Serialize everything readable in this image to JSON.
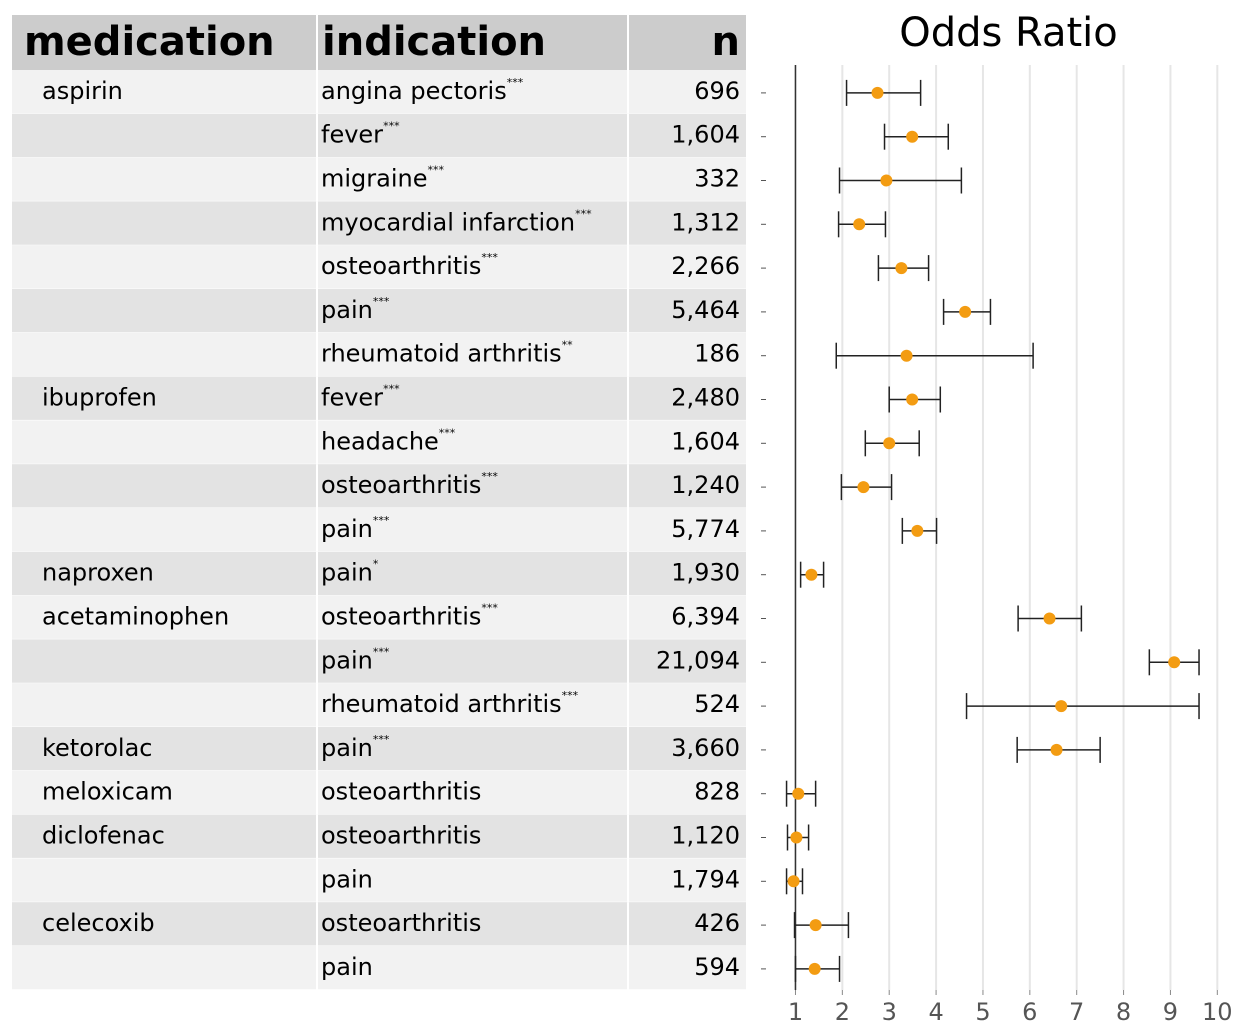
{
  "chart_data": {
    "type": "forest",
    "title": "Odds Ratio",
    "columns": [
      "medication",
      "indication",
      "n"
    ],
    "medication": [
      "aspirin",
      null,
      null,
      null,
      null,
      null,
      null,
      "ibuprofen",
      null,
      null,
      null,
      "naproxen",
      "acetaminophen",
      null,
      null,
      "ketorolac",
      "meloxicam",
      "diclofenac",
      null,
      "celecoxib",
      null
    ],
    "indication": [
      "angina pectoris",
      "fever",
      "migraine",
      "myocardial infarction",
      "osteoarthritis",
      "pain",
      "rheumatoid arthritis",
      "fever",
      "headache",
      "osteoarthritis",
      "pain",
      "pain",
      "osteoarthritis",
      "pain",
      "rheumatoid arthritis",
      "pain",
      "osteoarthritis",
      "osteoarthritis",
      "pain",
      "osteoarthritis",
      "pain"
    ],
    "stars": [
      "***",
      "***",
      "***",
      "***",
      "***",
      "***",
      "**",
      "***",
      "***",
      "***",
      "***",
      "*",
      "***",
      "***",
      "***",
      "***",
      null,
      null,
      null,
      null,
      null
    ],
    "n": [
      "696",
      "1,604",
      "332",
      "1,312",
      "2,266",
      "5,464",
      "186",
      "2,480",
      "1,604",
      "1,240",
      "5,774",
      "1,930",
      "6,394",
      "21,094",
      "524",
      "3,660",
      "828",
      "1,120",
      "1,794",
      "426",
      "594"
    ],
    "odds_ratio": [
      2.75,
      3.49,
      2.94,
      2.36,
      3.26,
      4.62,
      3.37,
      3.49,
      3.0,
      2.45,
      3.6,
      1.34,
      6.42,
      9.08,
      6.67,
      6.57,
      1.06,
      1.02,
      0.96,
      1.43,
      1.41
    ],
    "lower": [
      2.09,
      2.9,
      1.94,
      1.92,
      2.77,
      4.16,
      1.87,
      3.0,
      2.49,
      1.98,
      3.28,
      1.11,
      5.75,
      8.55,
      4.65,
      5.73,
      0.81,
      0.83,
      0.81,
      0.98,
      1.0
    ],
    "upper": [
      3.67,
      4.26,
      4.54,
      2.92,
      3.84,
      5.16,
      6.07,
      4.09,
      3.64,
      3.05,
      4.01,
      1.6,
      7.1,
      9.61,
      9.61,
      7.5,
      1.43,
      1.28,
      1.15,
      2.13,
      1.94
    ],
    "color": "#f39c12",
    "reference": 1,
    "xlim": [
      0.35,
      10.1
    ],
    "xticks": [
      1,
      2,
      3,
      4,
      5,
      6,
      7,
      8,
      9,
      10
    ],
    "grid": true
  }
}
